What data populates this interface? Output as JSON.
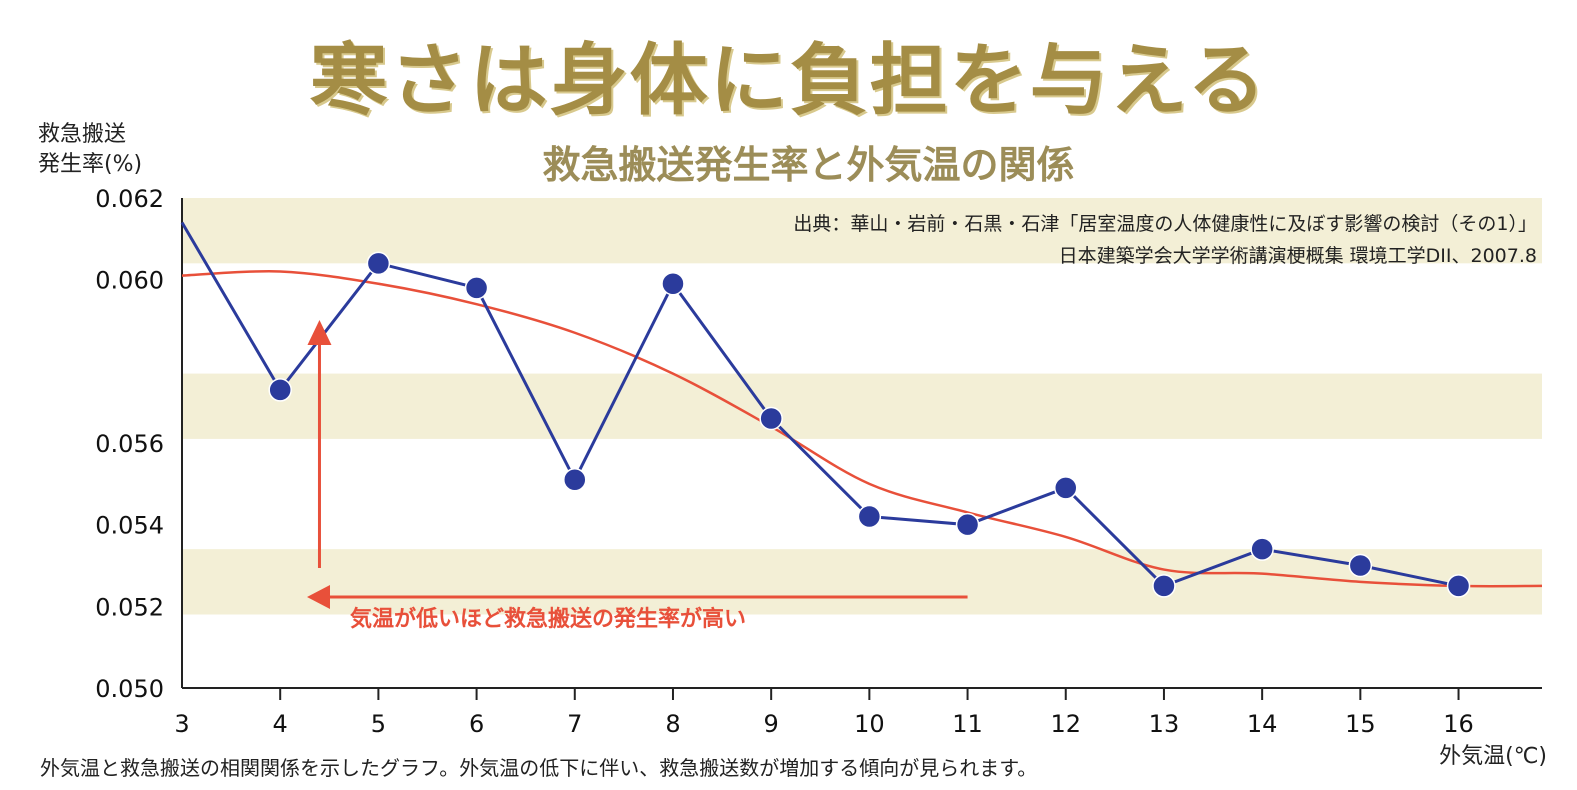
{
  "title": "寒さは身体に負担を与える",
  "subtitle": "救急搬送発生率と外気温の関係",
  "source": {
    "line1": "出典：華山・岩前・石黒・石津「居室温度の人体健康性に及ぼす影響の検討（その1）」",
    "line2": "日本建築学会大学学術講演梗概集 環境工学DII、2007.8"
  },
  "caption": "外気温と救急搬送の相関関係を示したグラフ。外気温の低下に伴い、救急搬送数が増加する傾向が見られます。",
  "annotation": "気温が低いほど救急搬送の発生率が高い",
  "colors": {
    "series": "#2b3b9c",
    "trend": "#e8503a",
    "band": "#f3efd6",
    "title": "#a48d45"
  },
  "chart_data": {
    "type": "line",
    "ylabel_line1": "救急搬送",
    "ylabel_line2": "発生率(%)",
    "xlabel": "外気温(℃)",
    "xlim": [
      3,
      16.85
    ],
    "ylim": [
      0.05,
      0.062
    ],
    "x_ticks": [
      3,
      4,
      5,
      6,
      7,
      8,
      9,
      10,
      11,
      12,
      13,
      14,
      15,
      16
    ],
    "y_ticks": [
      "0.050",
      "0.052",
      "0.054",
      "0.056",
      "0.060",
      "0.062"
    ],
    "y_tick_values": [
      0.05,
      0.052,
      0.054,
      0.056,
      0.06,
      0.062
    ],
    "series": [
      {
        "x": [
          3,
          4,
          5,
          6,
          7,
          8,
          9,
          10,
          11,
          12,
          13,
          14,
          15,
          16
        ],
        "y": [
          0.0614,
          0.0573,
          0.0604,
          0.0598,
          0.0551,
          0.0599,
          0.0566,
          0.0542,
          0.054,
          0.0549,
          0.0525,
          0.0534,
          0.053,
          0.0525
        ]
      }
    ],
    "trend": {
      "x": [
        3,
        4,
        5,
        6,
        7,
        8,
        9,
        10,
        11,
        12,
        13,
        14,
        15,
        16,
        16.85
      ],
      "y": [
        0.0601,
        0.0602,
        0.0599,
        0.0594,
        0.0587,
        0.0577,
        0.0564,
        0.055,
        0.0543,
        0.0537,
        0.0529,
        0.0528,
        0.0526,
        0.0525,
        0.0525
      ]
    }
  }
}
